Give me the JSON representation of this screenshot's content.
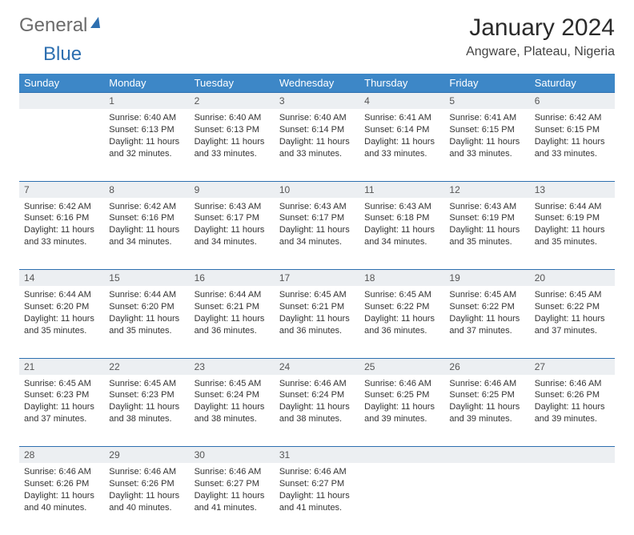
{
  "brand": {
    "part1": "General",
    "part2": "Blue"
  },
  "title": "January 2024",
  "location": "Angware, Plateau, Nigeria",
  "colors": {
    "header_bg": "#3d87c7",
    "daynum_bg": "#eceff2",
    "week_divider": "#2d6fb0",
    "text": "#333333"
  },
  "day_names": [
    "Sunday",
    "Monday",
    "Tuesday",
    "Wednesday",
    "Thursday",
    "Friday",
    "Saturday"
  ],
  "weeks": [
    {
      "nums": [
        "",
        "1",
        "2",
        "3",
        "4",
        "5",
        "6"
      ],
      "cells": [
        "",
        "Sunrise: 6:40 AM\nSunset: 6:13 PM\nDaylight: 11 hours and 32 minutes.",
        "Sunrise: 6:40 AM\nSunset: 6:13 PM\nDaylight: 11 hours and 33 minutes.",
        "Sunrise: 6:40 AM\nSunset: 6:14 PM\nDaylight: 11 hours and 33 minutes.",
        "Sunrise: 6:41 AM\nSunset: 6:14 PM\nDaylight: 11 hours and 33 minutes.",
        "Sunrise: 6:41 AM\nSunset: 6:15 PM\nDaylight: 11 hours and 33 minutes.",
        "Sunrise: 6:42 AM\nSunset: 6:15 PM\nDaylight: 11 hours and 33 minutes."
      ]
    },
    {
      "nums": [
        "7",
        "8",
        "9",
        "10",
        "11",
        "12",
        "13"
      ],
      "cells": [
        "Sunrise: 6:42 AM\nSunset: 6:16 PM\nDaylight: 11 hours and 33 minutes.",
        "Sunrise: 6:42 AM\nSunset: 6:16 PM\nDaylight: 11 hours and 34 minutes.",
        "Sunrise: 6:43 AM\nSunset: 6:17 PM\nDaylight: 11 hours and 34 minutes.",
        "Sunrise: 6:43 AM\nSunset: 6:17 PM\nDaylight: 11 hours and 34 minutes.",
        "Sunrise: 6:43 AM\nSunset: 6:18 PM\nDaylight: 11 hours and 34 minutes.",
        "Sunrise: 6:43 AM\nSunset: 6:19 PM\nDaylight: 11 hours and 35 minutes.",
        "Sunrise: 6:44 AM\nSunset: 6:19 PM\nDaylight: 11 hours and 35 minutes."
      ]
    },
    {
      "nums": [
        "14",
        "15",
        "16",
        "17",
        "18",
        "19",
        "20"
      ],
      "cells": [
        "Sunrise: 6:44 AM\nSunset: 6:20 PM\nDaylight: 11 hours and 35 minutes.",
        "Sunrise: 6:44 AM\nSunset: 6:20 PM\nDaylight: 11 hours and 35 minutes.",
        "Sunrise: 6:44 AM\nSunset: 6:21 PM\nDaylight: 11 hours and 36 minutes.",
        "Sunrise: 6:45 AM\nSunset: 6:21 PM\nDaylight: 11 hours and 36 minutes.",
        "Sunrise: 6:45 AM\nSunset: 6:22 PM\nDaylight: 11 hours and 36 minutes.",
        "Sunrise: 6:45 AM\nSunset: 6:22 PM\nDaylight: 11 hours and 37 minutes.",
        "Sunrise: 6:45 AM\nSunset: 6:22 PM\nDaylight: 11 hours and 37 minutes."
      ]
    },
    {
      "nums": [
        "21",
        "22",
        "23",
        "24",
        "25",
        "26",
        "27"
      ],
      "cells": [
        "Sunrise: 6:45 AM\nSunset: 6:23 PM\nDaylight: 11 hours and 37 minutes.",
        "Sunrise: 6:45 AM\nSunset: 6:23 PM\nDaylight: 11 hours and 38 minutes.",
        "Sunrise: 6:45 AM\nSunset: 6:24 PM\nDaylight: 11 hours and 38 minutes.",
        "Sunrise: 6:46 AM\nSunset: 6:24 PM\nDaylight: 11 hours and 38 minutes.",
        "Sunrise: 6:46 AM\nSunset: 6:25 PM\nDaylight: 11 hours and 39 minutes.",
        "Sunrise: 6:46 AM\nSunset: 6:25 PM\nDaylight: 11 hours and 39 minutes.",
        "Sunrise: 6:46 AM\nSunset: 6:26 PM\nDaylight: 11 hours and 39 minutes."
      ]
    },
    {
      "nums": [
        "28",
        "29",
        "30",
        "31",
        "",
        "",
        ""
      ],
      "cells": [
        "Sunrise: 6:46 AM\nSunset: 6:26 PM\nDaylight: 11 hours and 40 minutes.",
        "Sunrise: 6:46 AM\nSunset: 6:26 PM\nDaylight: 11 hours and 40 minutes.",
        "Sunrise: 6:46 AM\nSunset: 6:27 PM\nDaylight: 11 hours and 41 minutes.",
        "Sunrise: 6:46 AM\nSunset: 6:27 PM\nDaylight: 11 hours and 41 minutes.",
        "",
        "",
        ""
      ]
    }
  ]
}
